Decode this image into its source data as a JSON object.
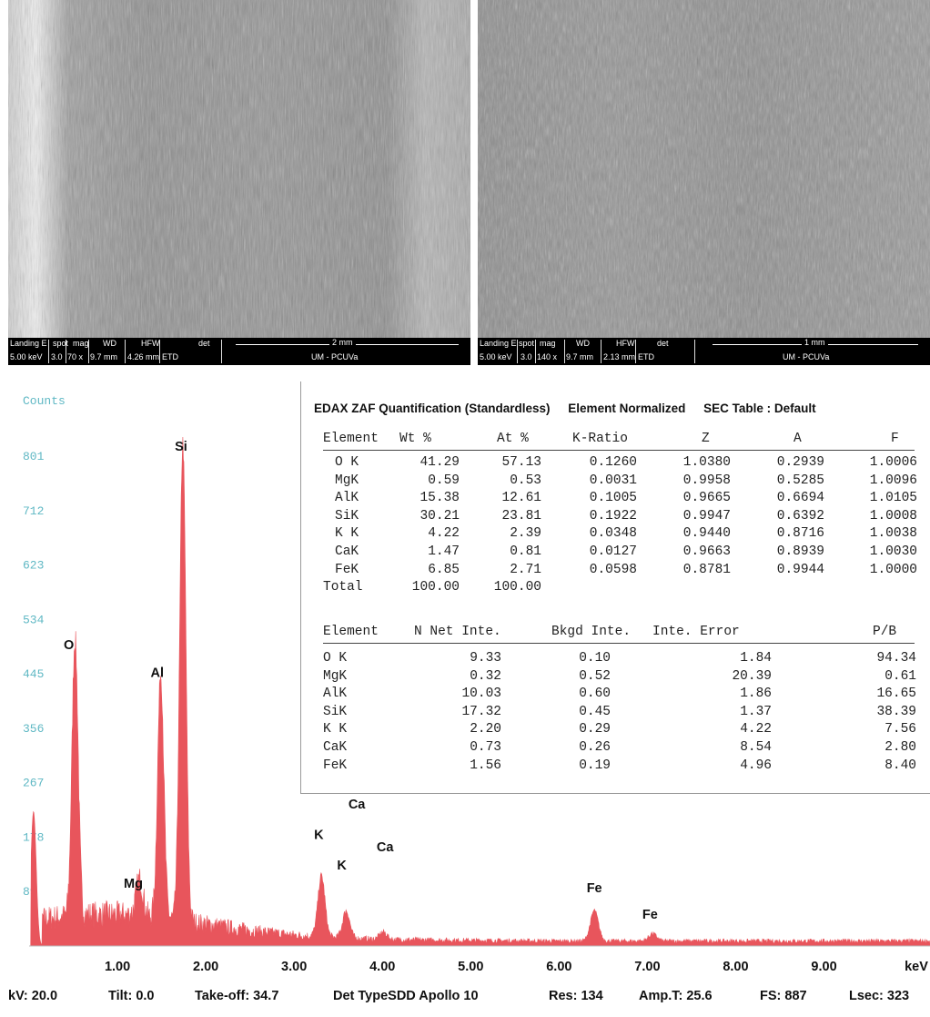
{
  "sem_images": [
    {
      "info_labels": [
        "Landing E",
        "spot",
        "mag",
        "WD",
        "HFW",
        "det"
      ],
      "info_values": [
        "5.00 keV",
        "3.0",
        "70 x",
        "9.7 mm",
        "4.26 mm",
        "ETD"
      ],
      "scale": "2 mm",
      "lab": "UM - PCUVa"
    },
    {
      "info_labels": [
        "Landing E",
        "spot",
        "mag",
        "WD",
        "HFW",
        "det"
      ],
      "info_values": [
        "5.00 keV",
        "3.0",
        "140 x",
        "9.7 mm",
        "2.13 mm",
        "ETD"
      ],
      "scale": "1 mm",
      "lab": "UM - PCUVa"
    }
  ],
  "chart_data": {
    "type": "line",
    "ylabel": "Counts",
    "xlabel": "keV",
    "xlim": [
      0.0,
      10.2
    ],
    "ylim": [
      0,
      935
    ],
    "x_ticks": [
      "1.00",
      "2.00",
      "3.00",
      "4.00",
      "5.00",
      "6.00",
      "7.00",
      "8.00",
      "9.00"
    ],
    "y_ticks": [
      "89",
      "178",
      "267",
      "356",
      "445",
      "534",
      "623",
      "712",
      "801"
    ],
    "series_color": "#e8555c",
    "peaks": [
      {
        "x": 0.05,
        "y": 220
      },
      {
        "x": 0.52,
        "y": 455
      },
      {
        "x": 1.25,
        "y": 60
      },
      {
        "x": 1.49,
        "y": 400
      },
      {
        "x": 1.74,
        "y": 780
      },
      {
        "x": 3.31,
        "y": 100
      },
      {
        "x": 3.59,
        "y": 45
      },
      {
        "x": 4.01,
        "y": 12
      },
      {
        "x": 6.4,
        "y": 50
      },
      {
        "x": 7.06,
        "y": 12
      }
    ],
    "annotations": [
      {
        "label": "O",
        "x": 0.45,
        "y": 485
      },
      {
        "label": "Mg",
        "x": 1.18,
        "y": 95
      },
      {
        "label": "Al",
        "x": 1.45,
        "y": 440
      },
      {
        "label": "Si",
        "x": 1.72,
        "y": 810
      },
      {
        "label": "K",
        "x": 3.28,
        "y": 175
      },
      {
        "label": "K",
        "x": 3.54,
        "y": 125
      },
      {
        "label": "Ca",
        "x": 3.71,
        "y": 225
      },
      {
        "label": "Ca",
        "x": 4.03,
        "y": 155
      },
      {
        "label": "Fe",
        "x": 6.4,
        "y": 88
      },
      {
        "label": "Fe",
        "x": 7.03,
        "y": 45
      }
    ]
  },
  "quant": {
    "title_parts": [
      "EDAX ZAF Quantification (Standardless)",
      "Element Normalized",
      "SEC Table : Default"
    ],
    "t1_headers": [
      "Element",
      "Wt %",
      "At %",
      "K-Ratio",
      "Z",
      "A",
      "F"
    ],
    "t1_rows": [
      [
        "O K",
        "41.29",
        "57.13",
        "0.1260",
        "1.0380",
        "0.2939",
        "1.0006"
      ],
      [
        "MgK",
        "0.59",
        "0.53",
        "0.0031",
        "0.9958",
        "0.5285",
        "1.0096"
      ],
      [
        "AlK",
        "15.38",
        "12.61",
        "0.1005",
        "0.9665",
        "0.6694",
        "1.0105"
      ],
      [
        "SiK",
        "30.21",
        "23.81",
        "0.1922",
        "0.9947",
        "0.6392",
        "1.0008"
      ],
      [
        "K K",
        "4.22",
        "2.39",
        "0.0348",
        "0.9440",
        "0.8716",
        "1.0038"
      ],
      [
        "CaK",
        "1.47",
        "0.81",
        "0.0127",
        "0.9663",
        "0.8939",
        "1.0030"
      ],
      [
        "FeK",
        "6.85",
        "2.71",
        "0.0598",
        "0.8781",
        "0.9944",
        "1.0000"
      ]
    ],
    "t1_total": [
      "Total",
      "100.00",
      "100.00"
    ],
    "t2_headers": [
      "Element",
      "N Net Inte.",
      "Bkgd Inte.",
      "Inte. Error",
      "P/B"
    ],
    "t2_rows": [
      [
        "O K",
        "9.33",
        "0.10",
        "1.84",
        "94.34"
      ],
      [
        "MgK",
        "0.32",
        "0.52",
        "20.39",
        "0.61"
      ],
      [
        "AlK",
        "10.03",
        "0.60",
        "1.86",
        "16.65"
      ],
      [
        "SiK",
        "17.32",
        "0.45",
        "1.37",
        "38.39"
      ],
      [
        "K K",
        "2.20",
        "0.29",
        "4.22",
        "7.56"
      ],
      [
        "CaK",
        "0.73",
        "0.26",
        "8.54",
        "2.80"
      ],
      [
        "FeK",
        "1.56",
        "0.19",
        "4.96",
        "8.40"
      ]
    ]
  },
  "footer": [
    "kV: 20.0",
    "Tilt: 0.0",
    "Take-off: 34.7",
    "Det TypeSDD Apollo 10",
    "Res: 134",
    "Amp.T: 25.6",
    "FS: 887",
    "Lsec: 323"
  ]
}
